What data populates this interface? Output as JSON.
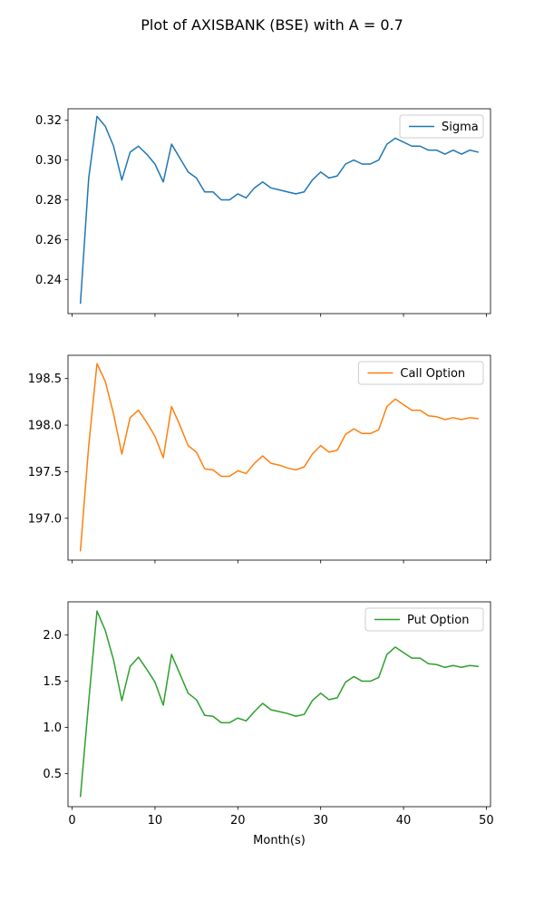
{
  "chart_data": {
    "type": "line",
    "title": "Plot of AXISBANK (BSE) with A = 0.7",
    "xlabel": "Month(s)",
    "xlim": [
      -0.5,
      50.5
    ],
    "xticks": [
      0,
      10,
      20,
      30,
      40,
      50
    ],
    "x": [
      1,
      2,
      3,
      4,
      5,
      6,
      7,
      8,
      9,
      10,
      11,
      12,
      13,
      14,
      15,
      16,
      17,
      18,
      19,
      20,
      21,
      22,
      23,
      24,
      25,
      26,
      27,
      28,
      29,
      30,
      31,
      32,
      33,
      34,
      35,
      36,
      37,
      38,
      39,
      40,
      41,
      42,
      43,
      44,
      45,
      46,
      47,
      48,
      49
    ],
    "panels": [
      {
        "legend": "Sigma",
        "color": "#1f77b4",
        "legend_loc": "upper right",
        "ylim": [
          0.2228,
          0.3258
        ],
        "yticks": [
          0.24,
          0.26,
          0.28,
          0.3,
          0.32
        ],
        "ytick_labels": [
          "0.24",
          "0.26",
          "0.28",
          "0.30",
          "0.32"
        ],
        "values": [
          0.228,
          0.291,
          0.322,
          0.317,
          0.307,
          0.29,
          0.304,
          0.307,
          0.303,
          0.298,
          0.289,
          0.308,
          0.301,
          0.294,
          0.291,
          0.284,
          0.284,
          0.28,
          0.28,
          0.283,
          0.281,
          0.286,
          0.289,
          0.286,
          0.285,
          0.284,
          0.283,
          0.284,
          0.29,
          0.294,
          0.291,
          0.292,
          0.298,
          0.3,
          0.298,
          0.298,
          0.3,
          0.308,
          0.311,
          0.309,
          0.307,
          0.307,
          0.305,
          0.305,
          0.303,
          0.305,
          0.303,
          0.305,
          0.304
        ]
      },
      {
        "legend": "Call Option",
        "color": "#ff7f0e",
        "legend_loc": "upper right",
        "ylim": [
          196.55,
          198.75
        ],
        "yticks": [
          197.0,
          197.5,
          198.0,
          198.5
        ],
        "ytick_labels": [
          "197.0",
          "197.5",
          "198.0",
          "198.5"
        ],
        "values": [
          196.65,
          197.78,
          198.66,
          198.47,
          198.12,
          197.69,
          198.08,
          198.16,
          198.03,
          197.88,
          197.65,
          198.2,
          198.0,
          197.78,
          197.71,
          197.53,
          197.52,
          197.45,
          197.45,
          197.51,
          197.48,
          197.59,
          197.67,
          197.59,
          197.57,
          197.54,
          197.52,
          197.55,
          197.69,
          197.78,
          197.71,
          197.73,
          197.9,
          197.96,
          197.91,
          197.91,
          197.95,
          198.2,
          198.28,
          198.22,
          198.16,
          198.16,
          198.1,
          198.09,
          198.06,
          198.08,
          198.06,
          198.08,
          198.07
        ]
      },
      {
        "legend": "Put Option",
        "color": "#2ca02c",
        "legend_loc": "upper right",
        "ylim": [
          0.14,
          2.36
        ],
        "yticks": [
          0.5,
          1.0,
          1.5,
          2.0
        ],
        "ytick_labels": [
          "0.5",
          "1.0",
          "1.5",
          "2.0"
        ],
        "values": [
          0.25,
          1.28,
          2.26,
          2.05,
          1.73,
          1.29,
          1.66,
          1.76,
          1.63,
          1.49,
          1.24,
          1.79,
          1.58,
          1.37,
          1.3,
          1.13,
          1.12,
          1.05,
          1.05,
          1.1,
          1.07,
          1.17,
          1.26,
          1.19,
          1.17,
          1.15,
          1.12,
          1.14,
          1.29,
          1.37,
          1.3,
          1.32,
          1.49,
          1.55,
          1.5,
          1.5,
          1.54,
          1.79,
          1.87,
          1.81,
          1.75,
          1.75,
          1.69,
          1.68,
          1.65,
          1.67,
          1.65,
          1.67,
          1.66
        ]
      }
    ]
  }
}
